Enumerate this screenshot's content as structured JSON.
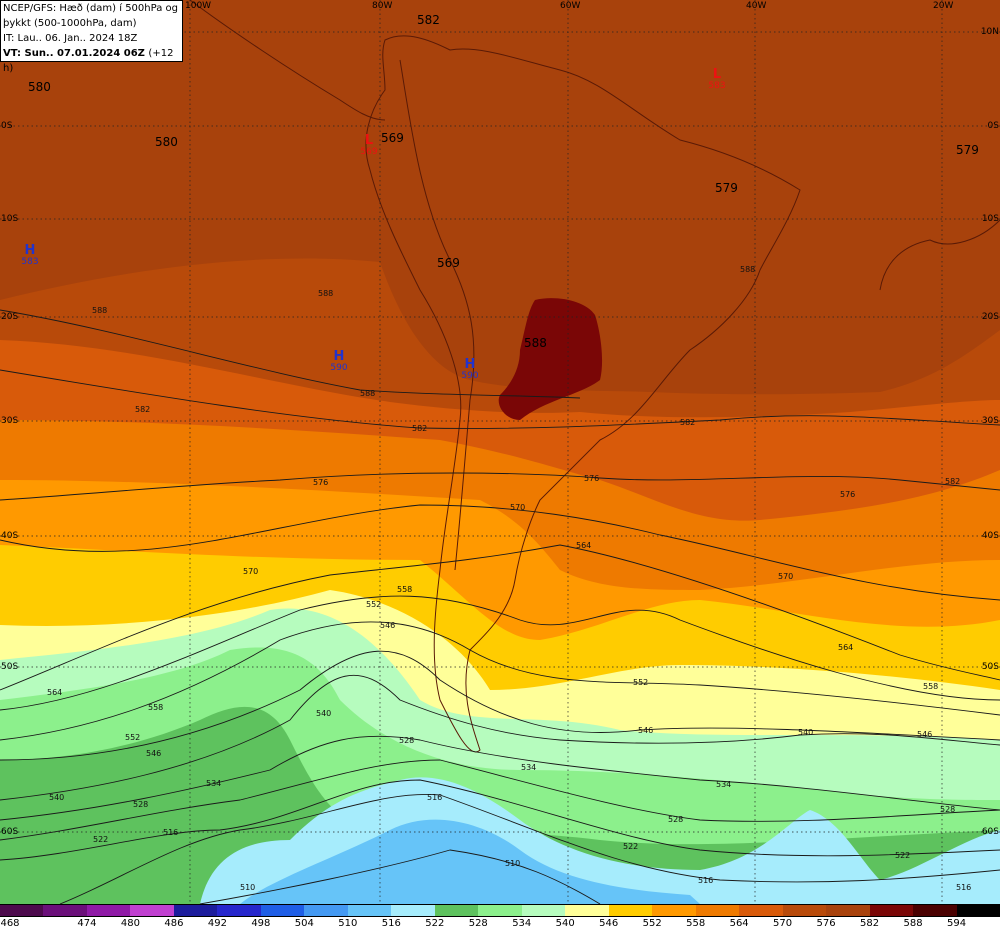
{
  "info_box": {
    "line1": "NCEP/GFS: Hæð (dam) í 500hPa og",
    "line2": "þykkt (500-1000hPa, dam)",
    "line3": "IT: Lau.. 06. Jan.. 2024 18Z",
    "vt_label": "VT: Sun.. 07.01.2024 06Z",
    "vt_step": "(+12 h)"
  },
  "longitude_labels": [
    "100W",
    "80W",
    "60W",
    "40W",
    "20W"
  ],
  "latitude_labels_right": [
    "10N",
    "0S",
    "10S",
    "20S",
    "30S",
    "40S",
    "50S",
    "60S"
  ],
  "latitude_labels_left": [
    "0S",
    "10S",
    "20S",
    "30S",
    "40S",
    "50S",
    "60S"
  ],
  "height_labels": [
    "580",
    "580",
    "582",
    "569",
    "569",
    "579",
    "579",
    "588"
  ],
  "pressure_systems": [
    {
      "type": "H",
      "value": "583",
      "color": "#2233cc"
    },
    {
      "type": "H",
      "value": "590",
      "color": "#2233cc"
    },
    {
      "type": "H",
      "value": "590",
      "color": "#2233cc"
    },
    {
      "type": "L",
      "value": "569",
      "color": "#ee1111"
    },
    {
      "type": "L",
      "value": "583",
      "color": "#ee1111"
    }
  ],
  "legend": {
    "values": [
      "468",
      "474",
      "480",
      "486",
      "492",
      "498",
      "504",
      "510",
      "516",
      "522",
      "528",
      "534",
      "540",
      "546",
      "552",
      "558",
      "564",
      "570",
      "576",
      "582",
      "588",
      "594"
    ],
    "colors": [
      "#4d0a4d",
      "#6b0f7a",
      "#8f1aa6",
      "#c040d0",
      "#1c1c9c",
      "#2626cc",
      "#1f5ee6",
      "#4499f2",
      "#66c4f8",
      "#a6ecfc",
      "#5ec25e",
      "#8cf08c",
      "#b6fcbe",
      "#ffff99",
      "#ffcc00",
      "#ff9900",
      "#ee7a00",
      "#d85a0a",
      "#b84a0a",
      "#a8420c",
      "#7a0606",
      "#4a0000",
      "#000000"
    ]
  },
  "palette": {
    "t588": "#7a0606",
    "t582": "#a8420c",
    "t576": "#b84a0a",
    "t570": "#d85a0a",
    "t564": "#ee7a00",
    "t558": "#ff9900",
    "t552": "#ffcc00",
    "t546": "#ffff99",
    "t540": "#b6fcbe",
    "t534": "#8cf08c",
    "t528": "#5ec25e",
    "t522": "#a6ecfc",
    "t516": "#66c4f8"
  },
  "contour_labels": [
    "588",
    "588",
    "588",
    "588",
    "582",
    "582",
    "582",
    "582",
    "576",
    "576",
    "576",
    "570",
    "570",
    "570",
    "564",
    "564",
    "564",
    "558",
    "558",
    "558",
    "552",
    "552",
    "552",
    "546",
    "546",
    "546",
    "546",
    "540",
    "540",
    "540",
    "534",
    "534",
    "534",
    "528",
    "528",
    "528",
    "528",
    "522",
    "522",
    "522",
    "516",
    "516",
    "516",
    "516",
    "510",
    "510"
  ]
}
